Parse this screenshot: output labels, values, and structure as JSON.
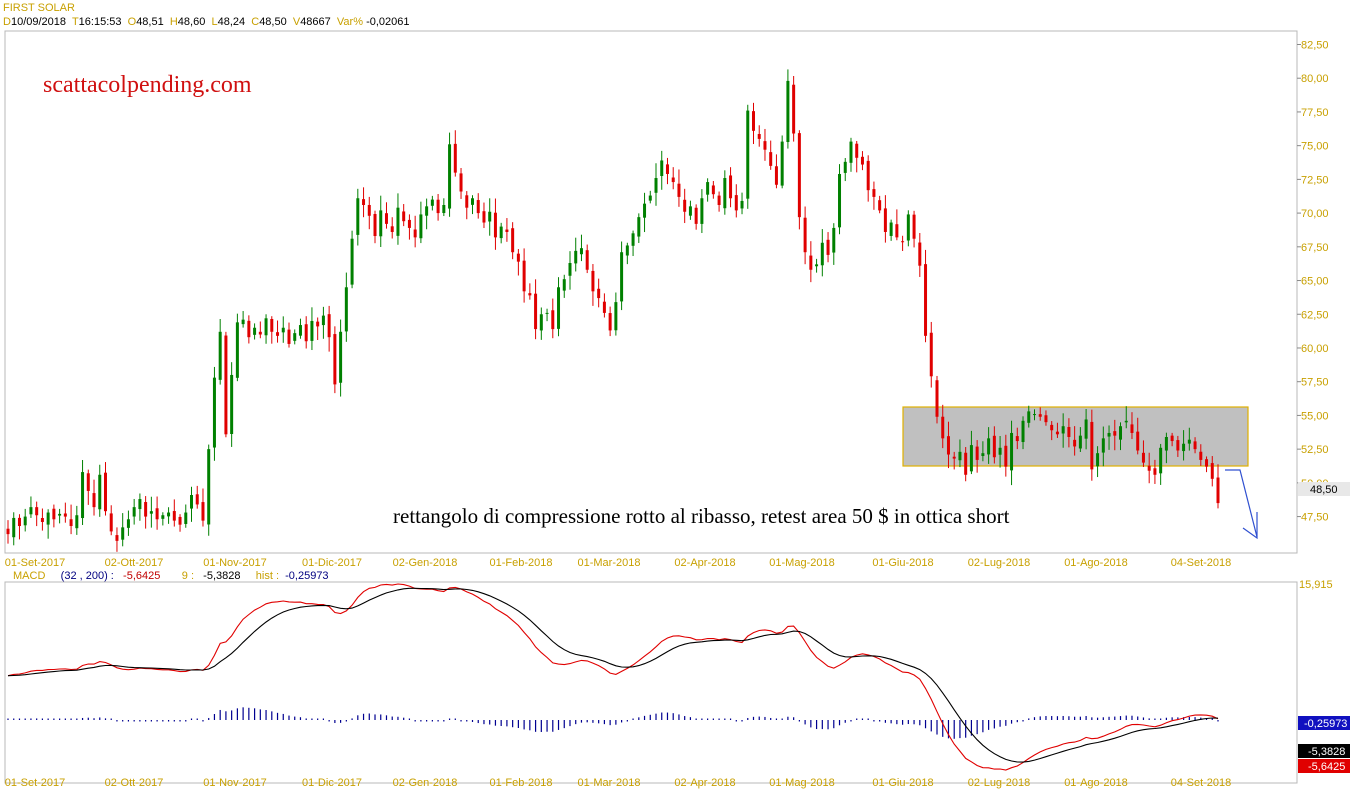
{
  "instrument": {
    "name": "FIRST SOLAR"
  },
  "quote": {
    "d_label": "D",
    "date": "10/09/2018",
    "t_label": "T",
    "time": "16:15:53",
    "o_label": "O",
    "open": "48,51",
    "h_label": "H",
    "high": "48,60",
    "l_label": "L",
    "low": "48,24",
    "c_label": "C",
    "close": "48,50",
    "v_label": "V",
    "volume": "48667",
    "var_label": "Var%",
    "var": "-0,02061"
  },
  "watermark": "scattacolpending.com",
  "annotation": "rettangolo di compressione rotto al ribasso, retest area 50 $ in ottica short",
  "colors": {
    "up": "#008000",
    "down": "#e00000",
    "axis_text": "#c8a000",
    "rect_fill": "#c0c0c0",
    "rect_border": "#e0b000",
    "macd_line": "#000000",
    "signal_line": "#e00000",
    "hist": "#000090",
    "arrow": "#3050d0"
  },
  "price_axis": {
    "ticks": [
      "82,50",
      "80,00",
      "77,50",
      "75,00",
      "72,50",
      "70,00",
      "67,50",
      "65,00",
      "62,50",
      "60,00",
      "57,50",
      "55,00",
      "52,50",
      "50,00",
      "47,50"
    ],
    "last_price": "48,50"
  },
  "macd_axis": {
    "top_label": "15,915",
    "hist_value": "-0,25973",
    "signal_value": "-5,3828",
    "macd_value": "-5,6425"
  },
  "macd_legend": {
    "name": "MACD",
    "params": "(32 , 200) :",
    "macd": "-5,6425",
    "sig_label": "9 :",
    "sig": "-5,3828",
    "hist_label": "hist :",
    "hist": "-0,25973"
  },
  "chart_data": {
    "type": "candlestick",
    "title": "FIRST SOLAR",
    "x_labels": [
      "01-Set-2017",
      "02-Ott-2017",
      "01-Nov-2017",
      "01-Dic-2017",
      "02-Gen-2018",
      "01-Feb-2018",
      "01-Mar-2018",
      "02-Apr-2018",
      "01-Mag-2018",
      "01-Giu-2018",
      "02-Lug-2018",
      "01-Ago-2018",
      "04-Set-2018"
    ],
    "y_range": [
      44.8,
      83.5
    ],
    "closes": [
      46.2,
      47.4,
      46.8,
      47.5,
      48.2,
      47.6,
      47.1,
      47.8,
      47.3,
      47.7,
      47.5,
      46.8,
      47.6,
      50.8,
      49.4,
      48.2,
      50.6,
      47.9,
      46.4,
      45.7,
      46.7,
      47.3,
      48.2,
      48.8,
      47.5,
      47.9,
      47.3,
      47.6,
      47.8,
      47.2,
      46.9,
      47.8,
      49.1,
      48.4,
      47.2,
      52.5,
      57.8,
      61.2,
      53.6,
      58.0,
      61.9,
      62.1,
      60.8,
      61.5,
      61.0,
      62.2,
      61.2,
      60.9,
      61.5,
      60.3,
      61.1,
      61.7,
      60.5,
      62.0,
      61.6,
      62.4,
      60.8,
      57.3,
      61.2,
      64.5,
      68.1,
      71.1,
      70.6,
      69.8,
      68.3,
      70.2,
      69.2,
      68.6,
      70.4,
      69.4,
      68.9,
      68.2,
      69.9,
      70.5,
      71.0,
      70.0,
      70.6,
      75.1,
      73.0,
      71.6,
      70.4,
      71.1,
      70.0,
      69.3,
      70.1,
      68.2,
      69.0,
      68.6,
      67.1,
      66.4,
      64.2,
      63.9,
      61.4,
      62.5,
      62.6,
      61.4,
      64.5,
      65.1,
      66.3,
      67.2,
      67.4,
      65.8,
      64.2,
      63.7,
      62.6,
      61.3,
      63.4,
      67.1,
      67.6,
      68.5,
      69.7,
      70.7,
      71.3,
      72.6,
      73.9,
      72.9,
      72.3,
      71.2,
      70.1,
      70.5,
      69.2,
      71.1,
      72.3,
      71.4,
      70.6,
      72.6,
      71.1,
      70.2,
      70.9,
      77.6,
      76.1,
      75.5,
      74.7,
      73.5,
      72.1,
      75.3,
      79.8,
      75.9,
      69.7,
      67.1,
      65.8,
      66.2,
      67.8,
      66.9,
      68.9,
      72.9,
      73.8,
      75.3,
      74.1,
      73.6,
      71.7,
      71.2,
      70.2,
      68.6,
      69.3,
      68.2,
      67.9,
      69.9,
      68.1,
      66.1,
      60.9,
      57.9,
      54.9,
      53.3,
      52.1,
      51.8,
      52.3,
      50.6,
      52.8,
      51.7,
      52.2,
      53.3,
      51.9,
      52.6,
      51.2,
      53.7,
      53.1,
      54.6,
      55.3,
      55.1,
      54.9,
      54.5,
      53.9,
      53.6,
      54.2,
      53.4,
      52.7,
      53.5,
      54.7,
      51.0,
      52.2,
      53.3,
      53.7,
      53.5,
      54.2,
      54.6,
      53.7,
      52.4,
      51.5,
      50.9,
      50.6,
      52.6,
      53.4,
      53.1,
      52.4,
      52.9,
      53.2,
      52.5,
      51.7,
      51.2,
      50.3,
      48.5
    ]
  }
}
